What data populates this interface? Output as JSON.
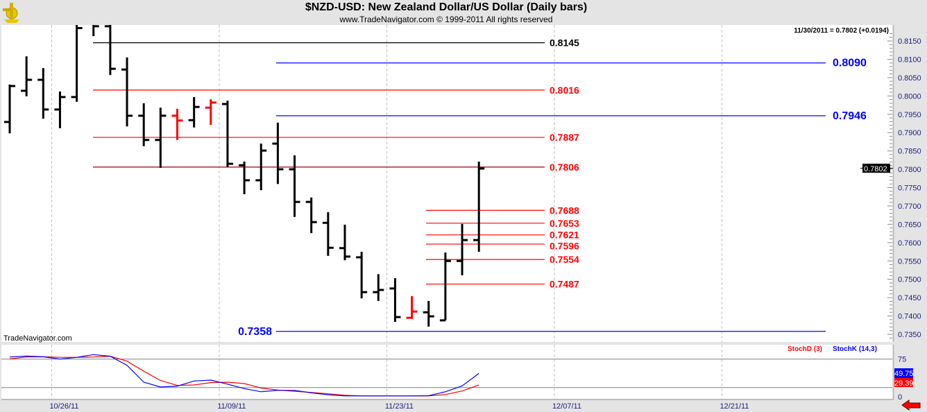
{
  "header": {
    "title": "$NZD-USD:  New Zealand Dollar/US Dollar  (Daily bars)",
    "subtitle": "www.TradeNavigator.com © 1999-2011 All rights reserved",
    "logo_icon": "sextant-logo-icon"
  },
  "info_readout": "11/30/2011 = 0.7802 (+0.0194)",
  "watermark": "TradeNavigator.com",
  "current_price_label": "0.7802",
  "nav_arrow_icon": "red-left-arrow-icon",
  "colors": {
    "up_bar": "#000000",
    "red_bar": "#ff0000",
    "red_level": "#ff0000",
    "blue_level": "#0000ff",
    "black_level": "#000000",
    "dark_red_level": "#a00000",
    "stoch_k": "#0000ff",
    "stoch_d": "#ff0000"
  },
  "chart_data": [
    {
      "type": "ohlc",
      "title": "$NZD-USD:  New Zealand Dollar/US Dollar  (Daily bars)",
      "ylim": [
        0.733,
        0.818
      ],
      "y_ticks": [
        "0.8150",
        "0.8100",
        "0.8050",
        "0.8000",
        "0.7950",
        "0.7900",
        "0.7850",
        "0.7800",
        "0.7750",
        "0.7700",
        "0.7650",
        "0.7600",
        "0.7550",
        "0.7500",
        "0.7450",
        "0.7400",
        "0.7350"
      ],
      "x_tick_labels": [
        {
          "date": "10/26/11",
          "index": 3
        },
        {
          "date": "11/09/11",
          "index": 13
        },
        {
          "date": "11/23/11",
          "index": 23
        },
        {
          "date": "12/07/11",
          "index": 33
        },
        {
          "date": "12/21/11",
          "index": 43
        }
      ],
      "bars": [
        {
          "d": "10/21/11",
          "o": 0.7929,
          "h": 0.8031,
          "l": 0.7898,
          "c": 0.8027
        },
        {
          "d": "10/24/11",
          "o": 0.8014,
          "h": 0.8108,
          "l": 0.7999,
          "c": 0.8044
        },
        {
          "d": "10/25/11",
          "o": 0.8044,
          "h": 0.8076,
          "l": 0.7938,
          "c": 0.7963
        },
        {
          "d": "10/26/11",
          "o": 0.7963,
          "h": 0.8012,
          "l": 0.7912,
          "c": 0.7997
        },
        {
          "d": "10/27/11",
          "o": 0.7997,
          "h": 0.821,
          "l": 0.7984,
          "c": 0.8185
        },
        {
          "d": "10/28/11",
          "o": 0.82,
          "h": 0.826,
          "l": 0.8163,
          "c": 0.819
        },
        {
          "d": "10/31/11",
          "o": 0.819,
          "h": 0.82,
          "l": 0.8057,
          "c": 0.8074
        },
        {
          "d": "11/01/11",
          "o": 0.8072,
          "h": 0.8105,
          "l": 0.7917,
          "c": 0.7946
        },
        {
          "d": "11/02/11",
          "o": 0.7946,
          "h": 0.798,
          "l": 0.7863,
          "c": 0.788
        },
        {
          "d": "11/03/11",
          "o": 0.788,
          "h": 0.7968,
          "l": 0.7804,
          "c": 0.7946
        },
        {
          "d": "11/04/11",
          "o": 0.7946,
          "h": 0.7965,
          "l": 0.788,
          "c": 0.7933,
          "red": true
        },
        {
          "d": "11/07/11",
          "o": 0.7934,
          "h": 0.7997,
          "l": 0.7914,
          "c": 0.797
        },
        {
          "d": "11/08/11",
          "o": 0.7968,
          "h": 0.7991,
          "l": 0.7921,
          "c": 0.7982,
          "red": true
        },
        {
          "d": "11/09/11",
          "o": 0.7978,
          "h": 0.7987,
          "l": 0.7806,
          "c": 0.7815
        },
        {
          "d": "11/10/11",
          "o": 0.7811,
          "h": 0.7821,
          "l": 0.7732,
          "c": 0.777
        },
        {
          "d": "11/11/11",
          "o": 0.777,
          "h": 0.787,
          "l": 0.7743,
          "c": 0.7851
        },
        {
          "d": "11/14/11",
          "o": 0.787,
          "h": 0.7927,
          "l": 0.776,
          "c": 0.78
        },
        {
          "d": "11/15/11",
          "o": 0.78,
          "h": 0.7838,
          "l": 0.767,
          "c": 0.7711
        },
        {
          "d": "11/16/11",
          "o": 0.7711,
          "h": 0.7723,
          "l": 0.7626,
          "c": 0.7656
        },
        {
          "d": "11/17/11",
          "o": 0.7654,
          "h": 0.7683,
          "l": 0.7564,
          "c": 0.7586
        },
        {
          "d": "11/18/11",
          "o": 0.7585,
          "h": 0.7649,
          "l": 0.7552,
          "c": 0.7562
        },
        {
          "d": "11/21/11",
          "o": 0.756,
          "h": 0.7575,
          "l": 0.7448,
          "c": 0.7465
        },
        {
          "d": "11/22/11",
          "o": 0.7465,
          "h": 0.7514,
          "l": 0.7441,
          "c": 0.7471
        },
        {
          "d": "11/23/11",
          "o": 0.7475,
          "h": 0.7503,
          "l": 0.7384,
          "c": 0.7397
        },
        {
          "d": "11/24/11",
          "o": 0.7395,
          "h": 0.7454,
          "l": 0.7392,
          "c": 0.7412,
          "red": true
        },
        {
          "d": "11/25/11",
          "o": 0.741,
          "h": 0.7441,
          "l": 0.7371,
          "c": 0.7399
        },
        {
          "d": "11/28/11",
          "o": 0.7388,
          "h": 0.7573,
          "l": 0.7388,
          "c": 0.755
        },
        {
          "d": "11/29/11",
          "o": 0.755,
          "h": 0.7651,
          "l": 0.7511,
          "c": 0.7607
        },
        {
          "d": "11/30/11",
          "o": 0.7607,
          "h": 0.7821,
          "l": 0.7575,
          "c": 0.7802
        }
      ],
      "levels": [
        {
          "label": "0.8145",
          "price": 0.8145,
          "color": "#000000",
          "set": "A"
        },
        {
          "label": "0.8016",
          "price": 0.8016,
          "color": "#ff0000",
          "set": "A"
        },
        {
          "label": "0.7887",
          "price": 0.7887,
          "color": "#ff0000",
          "set": "A"
        },
        {
          "label": "0.7806",
          "price": 0.7806,
          "color": "#ff0000",
          "line_color": "#a00000",
          "set": "A"
        },
        {
          "label": "0.8090",
          "price": 0.809,
          "color": "#0000ff",
          "set": "B"
        },
        {
          "label": "0.7946",
          "price": 0.7946,
          "color": "#0000ff",
          "set": "B"
        },
        {
          "label": "0.7358",
          "price": 0.7358,
          "color": "#0000ff",
          "set": "B",
          "label_side": "left"
        },
        {
          "label": "0.7688",
          "price": 0.7688,
          "color": "#ff0000",
          "set": "C"
        },
        {
          "label": "0.7653",
          "price": 0.7653,
          "color": "#ff0000",
          "set": "C"
        },
        {
          "label": "0.7621",
          "price": 0.7621,
          "color": "#ff0000",
          "set": "C"
        },
        {
          "label": "0.7596",
          "price": 0.7596,
          "color": "#ff0000",
          "set": "C"
        },
        {
          "label": "0.7554",
          "price": 0.7554,
          "color": "#ff0000",
          "set": "C"
        },
        {
          "label": "0.7487",
          "price": 0.7487,
          "color": "#ff0000",
          "set": "C"
        }
      ]
    },
    {
      "type": "line",
      "ylim": [
        0,
        100
      ],
      "y_ticks": [
        "75",
        "0"
      ],
      "reference_lines": [
        75,
        25
      ],
      "series": [
        {
          "name": "StochD (3)",
          "color": "#ff0000",
          "last_label": "29.39",
          "values": [
            75.4,
            78.7,
            79,
            78,
            78,
            78.7,
            80,
            71.3,
            53.7,
            37.3,
            28.7,
            29.5,
            33.6,
            34.4,
            32,
            24.2,
            20.5,
            18.4,
            16.4,
            14,
            11.5,
            10.2,
            10.2,
            10.2,
            10.2,
            10.2,
            12.7,
            18.9,
            29.39
          ]
        },
        {
          "name": "StochK (14,3)",
          "color": "#0000ff",
          "last_label": "49.75",
          "values": [
            78.7,
            80.3,
            79,
            75,
            78,
            82.8,
            80,
            64,
            34.4,
            25.8,
            27.5,
            36.5,
            38,
            31,
            23,
            17.6,
            20,
            20,
            15.6,
            12.3,
            10.2,
            10.2,
            10.2,
            10.2,
            10.2,
            10.6,
            17.6,
            27.9,
            49.75
          ]
        }
      ]
    }
  ]
}
